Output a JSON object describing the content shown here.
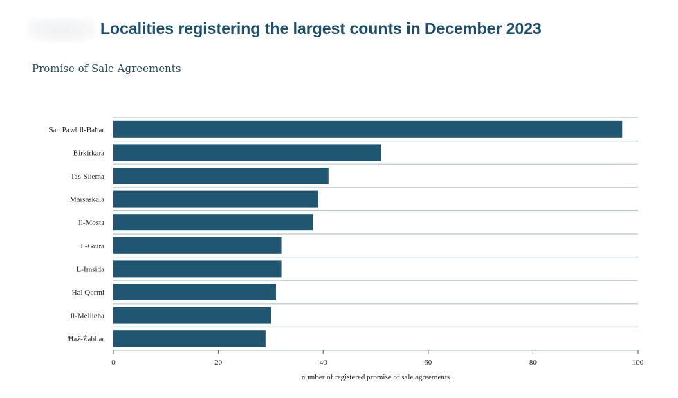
{
  "header": {
    "title": "Localities registering the largest counts in December 2023",
    "subtitle": "Promise of Sale Agreements"
  },
  "colors": {
    "bar": "#215670",
    "title": "#1d4f6b",
    "gridline": "#b5c3cb"
  },
  "chart_data": {
    "type": "bar",
    "orientation": "horizontal",
    "title": "Localities registering the largest counts in December 2023",
    "subtitle": "Promise of Sale Agreements",
    "categories": [
      "San Pawl Il-Baħar",
      "Birkirkara",
      "Tas-Sliema",
      "Marsaskala",
      "Il-Mosta",
      "Il-Gżira",
      "L-Imsida",
      "Ħal Qormi",
      "Il-Mellieħa",
      "Ħaż-Żabbar"
    ],
    "values": [
      97,
      51,
      41,
      39,
      38,
      32,
      32,
      31,
      30,
      29
    ],
    "xlabel": "number of registered promise of sale agreements",
    "ylabel": "",
    "xlim": [
      0,
      100
    ],
    "xticks": [
      0,
      20,
      40,
      60,
      80,
      100
    ],
    "grid": true,
    "legend": "none"
  }
}
